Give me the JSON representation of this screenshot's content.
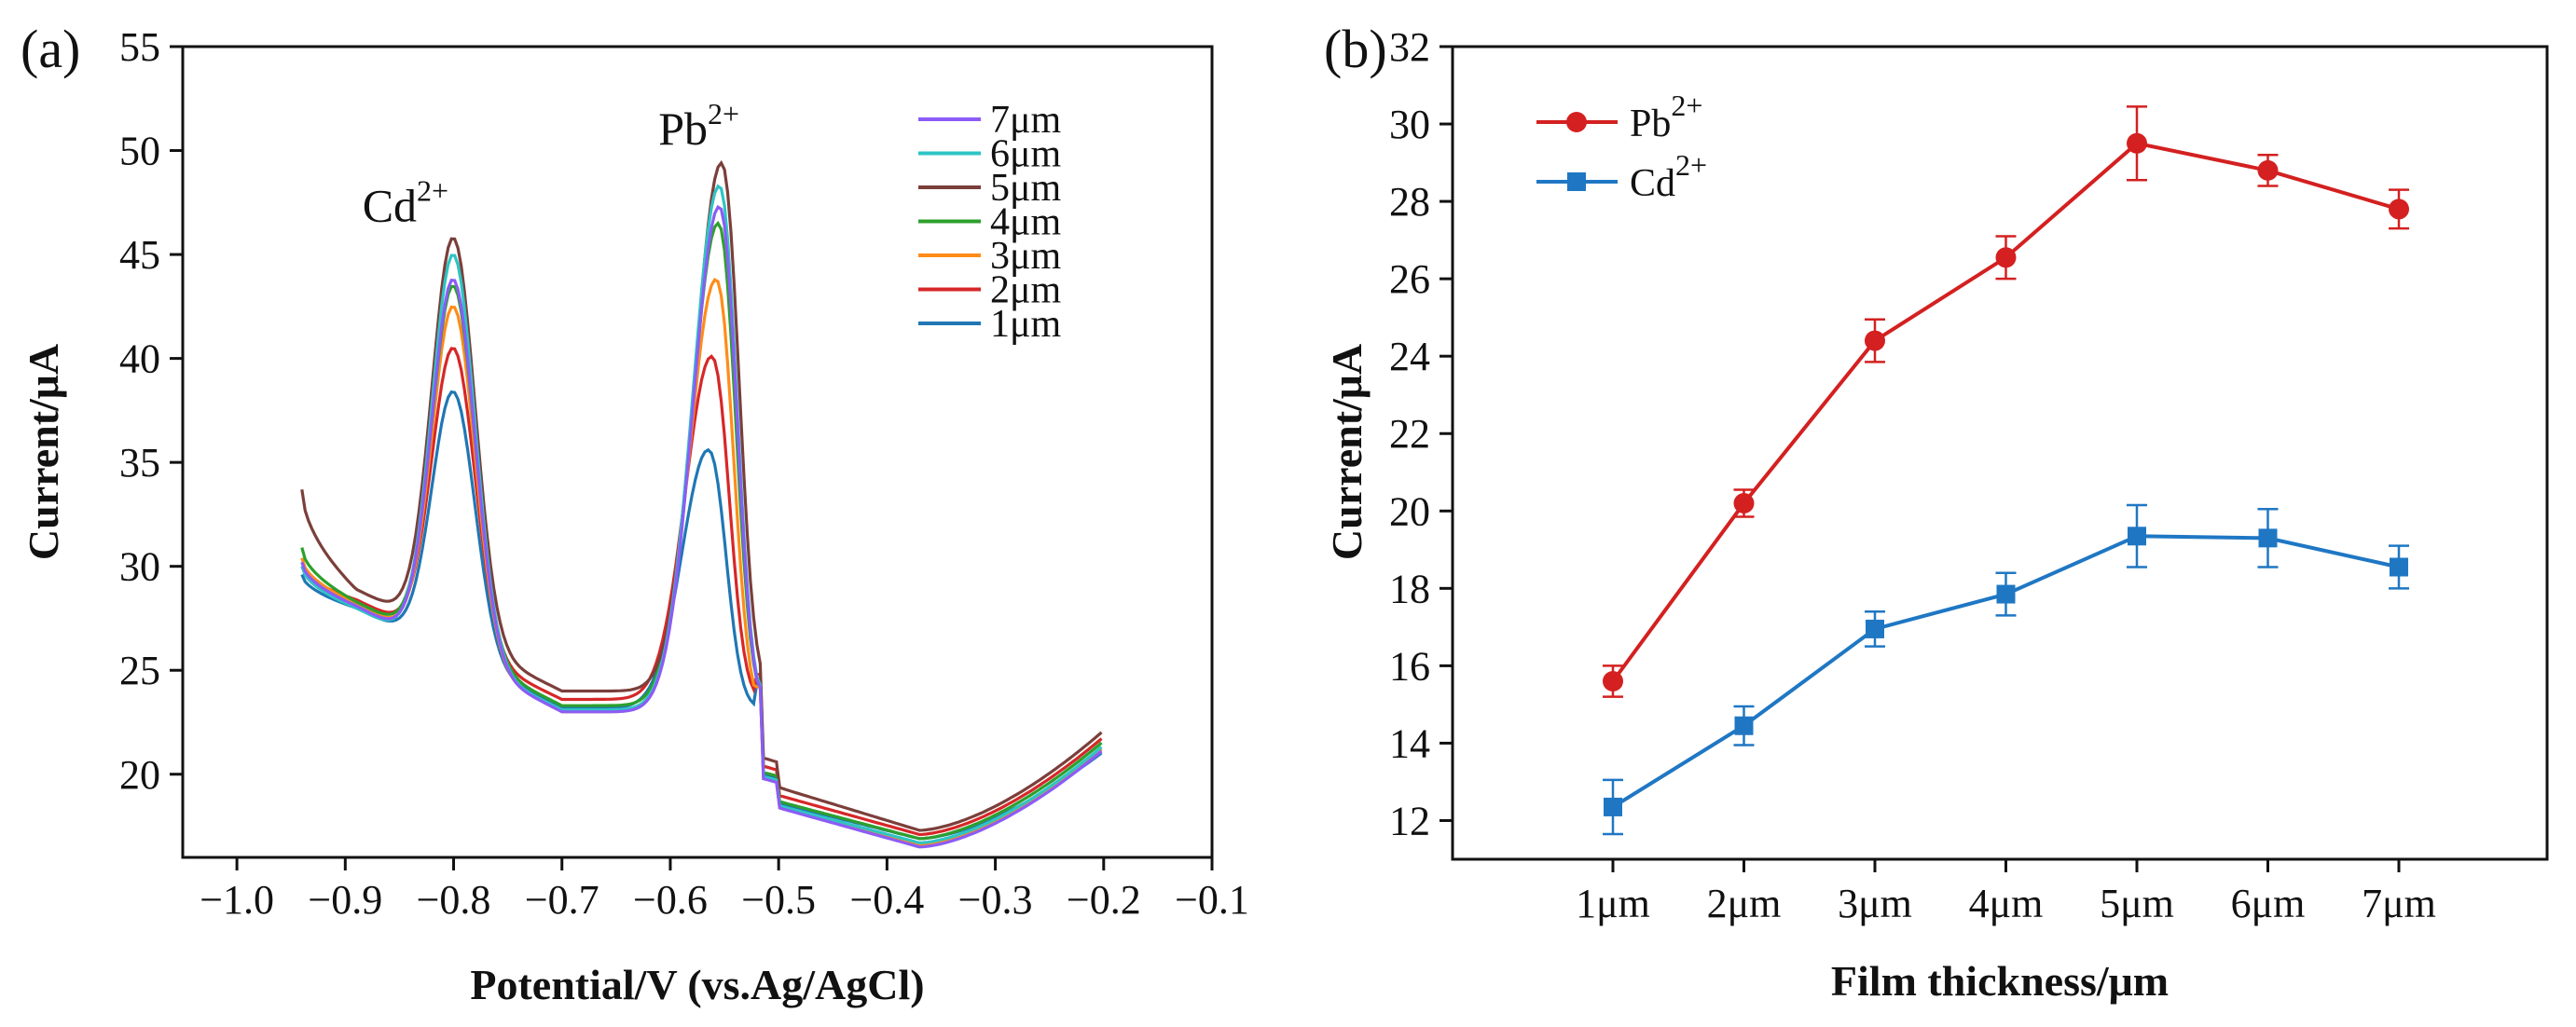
{
  "chart_data": [
    {
      "panel": "(a)",
      "type": "line",
      "xlabel": "Potential/V (vs.Ag/AgCl)",
      "ylabel": "Current/μA",
      "xlim": [
        -1.05,
        -0.1
      ],
      "ylim": [
        16,
        55
      ],
      "xticks": [
        -1.0,
        -0.9,
        -0.8,
        -0.7,
        -0.6,
        -0.5,
        -0.4,
        -0.3,
        -0.2,
        -0.1
      ],
      "xtick_labels": [
        "−1.0",
        "−0.9",
        "−0.8",
        "−0.7",
        "−0.6",
        "−0.5",
        "−0.4",
        "−0.3",
        "−0.2",
        "−0.1"
      ],
      "yticks": [
        20,
        25,
        30,
        35,
        40,
        45,
        50,
        55
      ],
      "annotations": [
        {
          "text": "Cd",
          "sup": "2+",
          "x": -0.81,
          "y": 46.6
        },
        {
          "text": "Pb",
          "sup": "2+",
          "x": -0.565,
          "y": 50.3
        }
      ],
      "legend_position": "top-right",
      "series": [
        {
          "name": "7μm",
          "color": "#8b5cf6",
          "start": 30.2,
          "valley1": 28.1,
          "cd_peak": 43.8,
          "mid": 23.0,
          "pb_peak": 47.3,
          "pb_x": -0.555,
          "tail": 16.5,
          "end": 21.2
        },
        {
          "name": "6μm",
          "color": "#2ec4c4",
          "start": 30.0,
          "valley1": 28.0,
          "cd_peak": 45.0,
          "mid": 23.1,
          "pb_peak": 48.3,
          "pb_x": -0.555,
          "tail": 16.7,
          "end": 21.4
        },
        {
          "name": "5μm",
          "color": "#7b3f3a",
          "start": 33.7,
          "valley1": 28.9,
          "cd_peak": 45.8,
          "mid": 24.0,
          "pb_peak": 49.4,
          "pb_x": -0.553,
          "tail": 17.3,
          "end": 22.1
        },
        {
          "name": "4μm",
          "color": "#2ca02c",
          "start": 30.9,
          "valley1": 28.3,
          "cd_peak": 43.5,
          "mid": 23.3,
          "pb_peak": 46.5,
          "pb_x": -0.556,
          "tail": 16.9,
          "end": 21.6
        },
        {
          "name": "3μm",
          "color": "#ff8c1a",
          "start": 30.4,
          "valley1": 28.2,
          "cd_peak": 42.5,
          "mid": 23.0,
          "pb_peak": 43.8,
          "pb_x": -0.558,
          "tail": 16.6,
          "end": 21.3
        },
        {
          "name": "2μm",
          "color": "#d62728",
          "start": 30.0,
          "valley1": 28.4,
          "cd_peak": 40.5,
          "mid": 23.6,
          "pb_peak": 40.1,
          "pb_x": -0.562,
          "tail": 17.1,
          "end": 21.8
        },
        {
          "name": "1μm",
          "color": "#1f77b4",
          "start": 29.6,
          "valley1": 28.0,
          "cd_peak": 38.4,
          "mid": 23.2,
          "pb_peak": 35.6,
          "pb_x": -0.565,
          "tail": 16.9,
          "end": 21.1
        }
      ]
    },
    {
      "panel": "(b)",
      "type": "line",
      "xlabel": "Film thickness/μm",
      "ylabel": "Current/μA",
      "categories": [
        "1μm",
        "2μm",
        "3μm",
        "4μm",
        "5μm",
        "6μm",
        "7μm"
      ],
      "ylim": [
        11,
        32
      ],
      "yticks": [
        12,
        14,
        16,
        18,
        20,
        22,
        24,
        26,
        28,
        30,
        32
      ],
      "legend_position": "top-left",
      "series": [
        {
          "name": "Pb",
          "sup": "2+",
          "marker": "circle",
          "color": "#d42020",
          "values": [
            15.6,
            20.2,
            24.4,
            26.55,
            29.5,
            28.8,
            27.8
          ],
          "errors": [
            0.4,
            0.35,
            0.55,
            0.55,
            0.95,
            0.4,
            0.5
          ]
        },
        {
          "name": "Cd",
          "sup": "2+",
          "marker": "square",
          "color": "#1f77c4",
          "values": [
            12.35,
            14.45,
            16.95,
            17.85,
            19.35,
            19.3,
            18.55
          ],
          "errors": [
            0.7,
            0.5,
            0.45,
            0.55,
            0.8,
            0.75,
            0.55
          ]
        }
      ]
    }
  ]
}
